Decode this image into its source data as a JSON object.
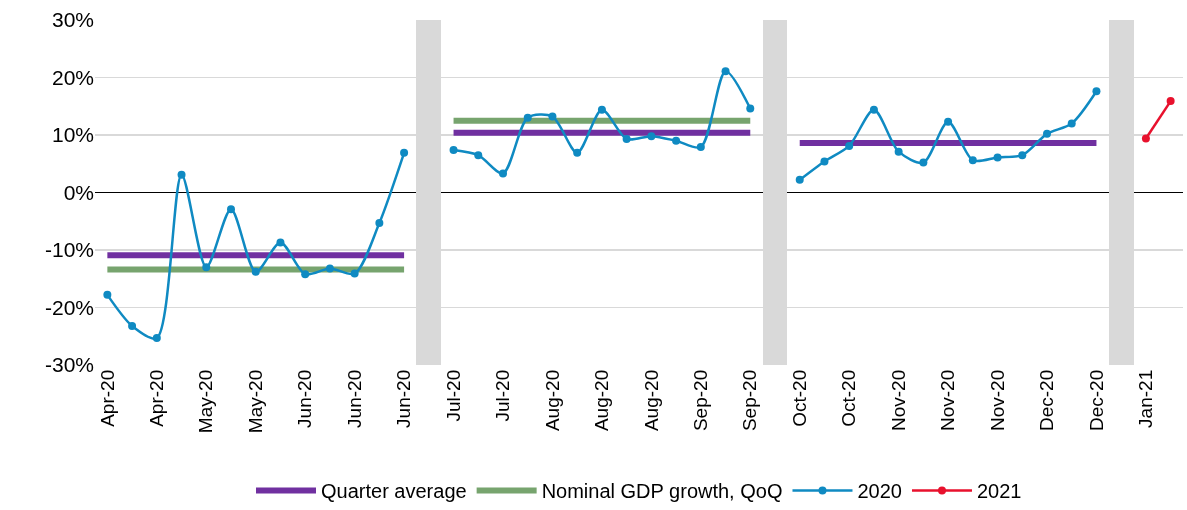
{
  "chart_data": {
    "type": "line",
    "categories": [
      "Apr-20",
      null,
      "Apr-20",
      null,
      "May-20",
      null,
      "May-20",
      null,
      "Jun-20",
      null,
      "Jun-20",
      null,
      "Jun-20",
      null,
      "Jul-20",
      null,
      "Jul-20",
      null,
      "Aug-20",
      null,
      "Aug-20",
      null,
      "Aug-20",
      null,
      "Sep-20",
      null,
      "Sep-20",
      null,
      "Oct-20",
      null,
      "Oct-20",
      null,
      "Nov-20",
      null,
      "Nov-20",
      null,
      "Nov-20",
      null,
      "Dec-20",
      null,
      "Dec-20",
      null,
      "Jan-21",
      null
    ],
    "series": [
      {
        "type": "bar",
        "color": "#d9d9d9",
        "values": [
          null,
          null,
          null,
          null,
          null,
          null,
          null,
          null,
          null,
          null,
          null,
          null,
          null,
          60,
          null,
          null,
          null,
          null,
          null,
          null,
          null,
          null,
          null,
          null,
          null,
          null,
          null,
          60,
          null,
          null,
          null,
          null,
          null,
          null,
          null,
          null,
          null,
          null,
          null,
          null,
          null,
          60,
          null,
          null
        ],
        "base": [
          null,
          null,
          null,
          null,
          null,
          null,
          null,
          null,
          null,
          null,
          null,
          null,
          null,
          -30,
          null,
          null,
          null,
          null,
          null,
          null,
          null,
          null,
          null,
          null,
          null,
          null,
          null,
          -30,
          null,
          null,
          null,
          null,
          null,
          null,
          null,
          null,
          null,
          null,
          null,
          null,
          null,
          -30,
          null,
          null
        ]
      },
      {
        "name": "Quarter average",
        "color": "#7030a0",
        "marker": "none",
        "values": [
          -10.9,
          -10.9,
          -10.9,
          -10.9,
          -10.9,
          -10.9,
          -10.9,
          -10.9,
          -10.9,
          -10.9,
          -10.9,
          -10.9,
          -10.9,
          null,
          10.4,
          10.4,
          10.4,
          10.4,
          10.4,
          10.4,
          10.4,
          10.4,
          10.4,
          10.4,
          10.4,
          10.4,
          10.4,
          null,
          8.6,
          8.6,
          8.6,
          8.6,
          8.6,
          8.6,
          8.6,
          8.6,
          8.6,
          8.6,
          8.6,
          8.6,
          8.6,
          null,
          null,
          null
        ]
      },
      {
        "name": "Nominal GDP growth, QoQ",
        "color": "#77a46e",
        "marker": "none",
        "values": [
          -13.4,
          -13.4,
          -13.4,
          -13.4,
          -13.4,
          -13.4,
          -13.4,
          -13.4,
          -13.4,
          -13.4,
          -13.4,
          -13.4,
          -13.4,
          null,
          12.5,
          12.5,
          12.5,
          12.5,
          12.5,
          12.5,
          12.5,
          12.5,
          12.5,
          12.5,
          12.5,
          12.5,
          12.5,
          null,
          null,
          null,
          null,
          null,
          null,
          null,
          null,
          null,
          null,
          null,
          null,
          null,
          null,
          null,
          null,
          null
        ]
      },
      {
        "name": "2020",
        "color": "#0f8ac2",
        "marker": "circle",
        "values": [
          -17.8,
          -23.2,
          -25.3,
          3.1,
          -13.0,
          -2.9,
          -13.8,
          -8.7,
          -14.2,
          -13.2,
          -14.1,
          -5.3,
          6.9,
          null,
          7.4,
          6.5,
          3.3,
          13.0,
          13.2,
          6.9,
          14.4,
          9.3,
          9.8,
          9.0,
          7.9,
          21.1,
          14.6,
          null,
          2.2,
          5.4,
          8.1,
          14.4,
          7.1,
          5.2,
          12.3,
          5.6,
          6.1,
          6.5,
          10.2,
          12.0,
          17.6,
          null,
          null,
          null
        ]
      },
      {
        "name": "2021",
        "color": "#e8112d",
        "marker": "circle",
        "values": [
          null,
          null,
          null,
          null,
          null,
          null,
          null,
          null,
          null,
          null,
          null,
          null,
          null,
          null,
          null,
          null,
          null,
          null,
          null,
          null,
          null,
          null,
          null,
          null,
          null,
          null,
          null,
          null,
          null,
          null,
          null,
          null,
          null,
          null,
          null,
          null,
          null,
          null,
          null,
          null,
          null,
          null,
          9.4,
          15.9
        ]
      }
    ],
    "ylim": [
      -30,
      30
    ],
    "yticks": [
      {
        "value": -30,
        "label": "-30%"
      },
      {
        "value": -20,
        "label": "-20%"
      },
      {
        "value": -10,
        "label": "-10%"
      },
      {
        "value": 0,
        "label": "0%"
      },
      {
        "value": 10,
        "label": "10%"
      },
      {
        "value": 20,
        "label": "20%"
      },
      {
        "value": 30,
        "label": "30%"
      }
    ],
    "grid": "y",
    "legend": "bottom"
  }
}
